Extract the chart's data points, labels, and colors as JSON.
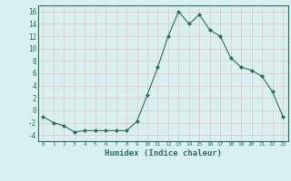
{
  "x": [
    0,
    1,
    2,
    3,
    4,
    5,
    6,
    7,
    8,
    9,
    10,
    11,
    12,
    13,
    14,
    15,
    16,
    17,
    18,
    19,
    20,
    21,
    22,
    23
  ],
  "y": [
    -1,
    -2,
    -2.5,
    -3.5,
    -3.3,
    -3.3,
    -3.3,
    -3.3,
    -3.3,
    -1.8,
    2.5,
    7,
    12,
    16,
    14,
    15.5,
    13,
    12,
    8.5,
    7,
    6.5,
    5.5,
    3,
    -1
  ],
  "line_color": "#2e6e5e",
  "marker": "D",
  "marker_size": 2.0,
  "bg_color": "#d8f0f0",
  "grid_color": "#c8dede",
  "tick_color": "#2e6e5e",
  "label_color": "#2e6e5e",
  "xlabel": "Humidex (Indice chaleur)",
  "ylim": [
    -5,
    17
  ],
  "yticks": [
    -4,
    -2,
    0,
    2,
    4,
    6,
    8,
    10,
    12,
    14,
    16
  ],
  "xticks": [
    0,
    1,
    2,
    3,
    4,
    5,
    6,
    7,
    8,
    9,
    10,
    11,
    12,
    13,
    14,
    15,
    16,
    17,
    18,
    19,
    20,
    21,
    22,
    23
  ]
}
